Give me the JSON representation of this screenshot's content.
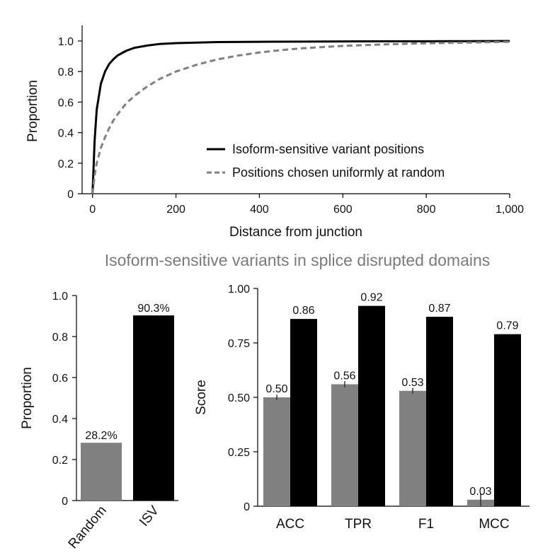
{
  "chart_data": [
    {
      "type": "line",
      "xlabel": "Distance from junction",
      "ylabel": "Proportion",
      "xlim": [
        -25,
        1000
      ],
      "ylim": [
        0,
        1.0
      ],
      "x_ticks": [
        0,
        200,
        400,
        600,
        800,
        1000
      ],
      "x_tick_labels": [
        "0",
        "200",
        "400",
        "600",
        "800",
        "1,000"
      ],
      "y_ticks": [
        0,
        0.2,
        0.4,
        0.6,
        0.8,
        1.0
      ],
      "y_tick_labels": [
        "0",
        "0.2",
        "0.4",
        "0.6",
        "0.8",
        "1.0"
      ],
      "legend_placement": "bottom-right",
      "series": [
        {
          "name": "Isoform-sensitive variant positions",
          "style": "solid",
          "color": "#000000",
          "x": [
            0,
            5,
            10,
            20,
            30,
            40,
            50,
            60,
            80,
            100,
            130,
            160,
            200,
            250,
            300,
            400,
            500,
            600,
            700,
            800,
            900,
            1000
          ],
          "y": [
            0.0,
            0.35,
            0.55,
            0.72,
            0.8,
            0.85,
            0.88,
            0.905,
            0.935,
            0.955,
            0.97,
            0.98,
            0.986,
            0.99,
            0.993,
            0.995,
            0.996,
            0.997,
            0.998,
            0.998,
            0.999,
            1.0
          ]
        },
        {
          "name": "Positions chosen uniformly at random",
          "style": "dashed",
          "color": "#808080",
          "x": [
            0,
            5,
            10,
            20,
            30,
            40,
            50,
            60,
            80,
            100,
            130,
            160,
            200,
            250,
            300,
            350,
            400,
            450,
            500,
            600,
            700,
            800,
            900,
            1000
          ],
          "y": [
            0.0,
            0.12,
            0.2,
            0.3,
            0.37,
            0.43,
            0.48,
            0.52,
            0.59,
            0.64,
            0.7,
            0.75,
            0.8,
            0.845,
            0.88,
            0.905,
            0.925,
            0.94,
            0.952,
            0.968,
            0.978,
            0.985,
            0.99,
            0.995
          ]
        }
      ]
    },
    {
      "type": "bar",
      "ylabel": "Proportion",
      "ylim": [
        0,
        1.0
      ],
      "y_ticks": [
        0,
        0.2,
        0.4,
        0.6,
        0.8,
        1.0
      ],
      "y_tick_labels": [
        "0",
        "0.2",
        "0.4",
        "0.6",
        "0.8",
        "1.0"
      ],
      "categories": [
        "Random",
        "ISV"
      ],
      "values": [
        0.282,
        0.903
      ],
      "value_labels": [
        "28.2%",
        "90.3%"
      ],
      "colors": [
        "#808080",
        "#000000"
      ]
    },
    {
      "type": "bar",
      "ylabel": "Score",
      "ylim": [
        0,
        1.0
      ],
      "y_ticks": [
        0,
        0.25,
        0.5,
        0.75,
        1.0
      ],
      "y_tick_labels": [
        "0",
        "0.25",
        "0.50",
        "0.75",
        "1.00"
      ],
      "categories": [
        "ACC",
        "TPR",
        "F1",
        "MCC"
      ],
      "series": [
        {
          "color": "#808080",
          "values": [
            0.5,
            0.56,
            0.53,
            0.03
          ],
          "value_labels": [
            "0.50",
            "0.56",
            "0.53",
            "0.03"
          ],
          "error": [
            0.012,
            0.014,
            0.013,
            0.03
          ]
        },
        {
          "color": "#000000",
          "values": [
            0.86,
            0.92,
            0.87,
            0.79
          ],
          "value_labels": [
            "0.86",
            "0.92",
            "0.87",
            "0.79"
          ]
        }
      ]
    }
  ],
  "section_title": "Isoform-sensitive variants in splice disrupted domains"
}
